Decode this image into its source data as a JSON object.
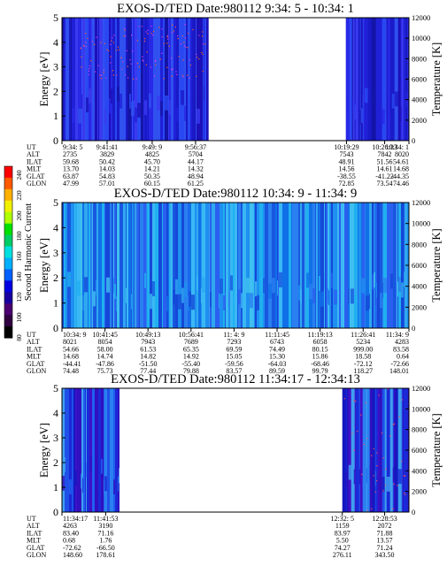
{
  "colorbar": {
    "label": "Second Harmonic Current",
    "ticks": [
      "240",
      "220",
      "200",
      "180",
      "160",
      "140",
      "120",
      "100",
      "80"
    ],
    "colors": [
      "#ff0000",
      "#ff5a00",
      "#ffb000",
      "#f0f000",
      "#b0ff00",
      "#00e000",
      "#00cc66",
      "#00e0e0",
      "#00b0ff",
      "#0060ff",
      "#0000e0",
      "#1800a0",
      "#4a0070",
      "#300040",
      "#000000"
    ]
  },
  "chart_data": [
    {
      "type": "heatmap",
      "title": "EXOS-D/TED   Date:980112  9:34: 5 - 10:34: 1",
      "ylabel": "Energy [eV]",
      "y2label": "Temperature [K]",
      "ylim": [
        0,
        5
      ],
      "y_ticks": [
        "0",
        "1",
        "2",
        "3",
        "4",
        "5"
      ],
      "y2lim": [
        0,
        12000
      ],
      "y2_ticks": [
        "0",
        "2000",
        "4000",
        "6000",
        "8000",
        "10000",
        "12000"
      ],
      "data_segments": [
        [
          0.0,
          0.422
        ],
        [
          0.818,
          1.0
        ]
      ],
      "mode": "dark",
      "table_labels": [
        "UT",
        "ALT",
        "ILAT",
        "MLT",
        "GLAT",
        "GLON"
      ],
      "columns": [
        {
          "pos": 0.0,
          "vals": [
            "9:34: 5",
            "2735",
            "59.68",
            "13.70",
            "63.87",
            "47.99"
          ]
        },
        {
          "pos": 0.13,
          "vals": [
            "9:41:41",
            "3829",
            "50.42",
            "14.03",
            "54.83",
            "57.01"
          ]
        },
        {
          "pos": 0.26,
          "vals": [
            "9:49: 9",
            "4825",
            "45.70",
            "14.21",
            "50.35",
            "60.15"
          ]
        },
        {
          "pos": 0.385,
          "vals": [
            "9:56:37",
            "5704",
            "44.17",
            "14.32",
            "48.94",
            "61.25"
          ]
        },
        {
          "pos": 0.82,
          "vals": [
            "10:19:29",
            "7543",
            "48.91",
            "14.56",
            "-38.55",
            "72.85"
          ]
        },
        {
          "pos": 0.93,
          "vals": [
            "10:26:33",
            "7842",
            "51.56",
            "14.61",
            "-41.22",
            "73.54"
          ]
        },
        {
          "pos": 1.0,
          "vals": [
            "10:34: 1",
            "8020",
            "54.61",
            "14.68",
            "-44.35",
            "74.46"
          ]
        }
      ]
    },
    {
      "type": "heatmap",
      "title": "EXOS-D/TED   Date:980112  10:34: 9 - 11:34: 9",
      "ylabel": "Energy [eV]",
      "y2label": "Temperature [K]",
      "ylim": [
        0,
        5
      ],
      "y_ticks": [
        "0",
        "1",
        "2",
        "3",
        "4",
        "5"
      ],
      "y2lim": [
        0,
        12000
      ],
      "y2_ticks": [
        "0",
        "2000",
        "4000",
        "6000",
        "8000",
        "10000",
        "12000"
      ],
      "data_segments": [
        [
          0.0,
          1.0
        ]
      ],
      "mode": "cyan",
      "table_labels": [
        "UT",
        "ALT",
        "ILAT",
        "MLT",
        "GLAT",
        "GLON"
      ],
      "columns": [
        {
          "pos": 0.0,
          "vals": [
            "10:34: 9",
            "8021",
            "54.66",
            "14.68",
            "-44.41",
            "74.48"
          ]
        },
        {
          "pos": 0.124,
          "vals": [
            "10:41:45",
            "8054",
            "58.00",
            "14.74",
            "-47.86",
            "75.73"
          ]
        },
        {
          "pos": 0.248,
          "vals": [
            "10:49:13",
            "7943",
            "61.53",
            "14.82",
            "-51.50",
            "77.44"
          ]
        },
        {
          "pos": 0.372,
          "vals": [
            "10:56:41",
            "7689",
            "65.35",
            "14.92",
            "-55.40",
            "79.88"
          ]
        },
        {
          "pos": 0.496,
          "vals": [
            "11: 4: 9",
            "7293",
            "69.59",
            "15.05",
            "-59.56",
            "83.57"
          ]
        },
        {
          "pos": 0.62,
          "vals": [
            "11:11:45",
            "6743",
            "74.49",
            "15.30",
            "-64.03",
            "89.59"
          ]
        },
        {
          "pos": 0.744,
          "vals": [
            "11:19:13",
            "6058",
            "80.15",
            "15.86",
            "-68.46",
            "99.79"
          ]
        },
        {
          "pos": 0.868,
          "vals": [
            "11:26:41",
            "5234",
            "999.00",
            "18.58",
            "-72.12",
            "118.27"
          ]
        },
        {
          "pos": 1.0,
          "vals": [
            "11:34: 9",
            "4283",
            "83.58",
            "0.64",
            "-72.66",
            "148.01"
          ]
        }
      ]
    },
    {
      "type": "heatmap",
      "title": "EXOS-D/TED   Date:980112  11:34:17 - 12:34:13",
      "ylabel": "Energy [eV]",
      "y2label": "Temperature [K]",
      "ylim": [
        0,
        5
      ],
      "y_ticks": [
        "0",
        "1",
        "2",
        "3",
        "4",
        "5"
      ],
      "y2lim": [
        0,
        12000
      ],
      "y2_ticks": [
        "0",
        "2000",
        "4000",
        "6000",
        "8000",
        "10000",
        "12000"
      ],
      "data_segments": [
        [
          0.0,
          0.165
        ],
        [
          0.808,
          1.0
        ]
      ],
      "mode": "mixed",
      "table_labels": [
        "UT",
        "ALT",
        "ILAT",
        "MLT",
        "GLAT",
        "GLON"
      ],
      "columns": [
        {
          "pos": 0.0,
          "vals": [
            "11:34:17",
            "4263",
            "83.40",
            "0.68",
            "-72.62",
            "148.60"
          ]
        },
        {
          "pos": 0.126,
          "vals": [
            "11:41:53",
            "3190",
            "71.16",
            "1.76",
            "-66.50",
            "178.61"
          ]
        },
        {
          "pos": 0.808,
          "vals": [
            "12:32: 5",
            "1159",
            "83.97",
            "5.50",
            "74.27",
            "276.11"
          ]
        },
        {
          "pos": 0.93,
          "vals": [
            "12:28:53",
            "2072",
            "71.88",
            "13.57",
            "71.24",
            "343.50"
          ]
        }
      ]
    }
  ]
}
